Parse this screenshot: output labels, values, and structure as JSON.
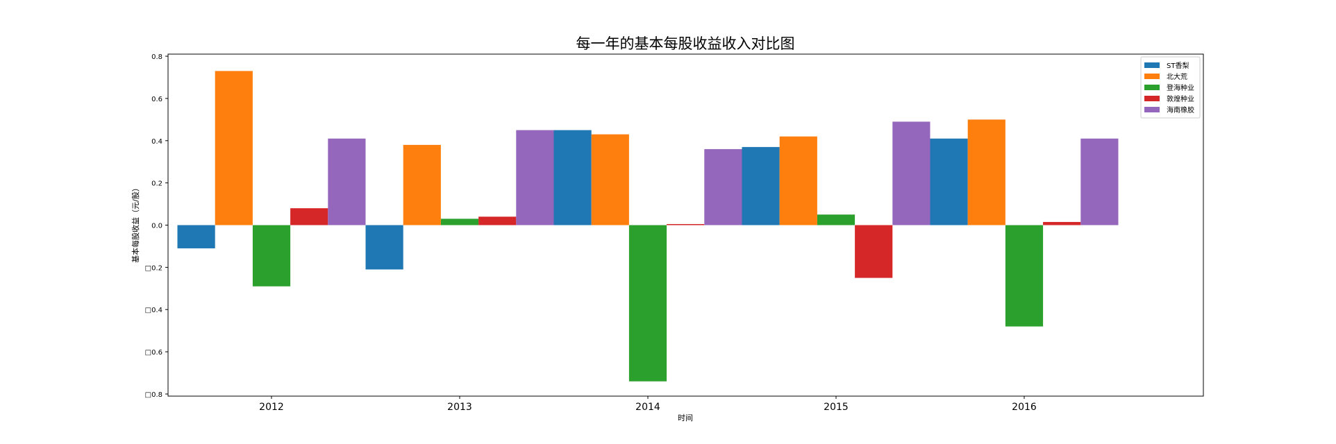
{
  "chart_data": {
    "type": "bar",
    "title": "每一年的基本每股收益收入对比图",
    "xlabel": "时间",
    "ylabel": "基本每股收益（元/股）",
    "categories": [
      "2012",
      "2013",
      "2014",
      "2015",
      "2016"
    ],
    "ylim": [
      -0.81,
      0.81
    ],
    "yticks": [
      0.8,
      0.6,
      0.4,
      0.2,
      0.0,
      -0.2,
      -0.4,
      -0.6,
      -0.8
    ],
    "ytick_labels": [
      "0.8",
      "0.6",
      "0.4",
      "0.2",
      "0.0",
      "□0.2",
      "□0.4",
      "□0.6",
      "□0.8"
    ],
    "grid": false,
    "legend_position": "top-right",
    "series": [
      {
        "name": "ST香梨",
        "color": "#1f77b4",
        "values": [
          -0.11,
          -0.21,
          0.45,
          0.37,
          0.41
        ]
      },
      {
        "name": "北大荒",
        "color": "#ff7f0e",
        "values": [
          0.73,
          0.38,
          0.43,
          0.42,
          0.5
        ]
      },
      {
        "name": "登海种业",
        "color": "#2ca02c",
        "values": [
          -0.29,
          0.03,
          -0.74,
          0.05,
          -0.48
        ]
      },
      {
        "name": "敦煌种业",
        "color": "#d62728",
        "values": [
          0.08,
          0.04,
          0.005,
          -0.25,
          0.015
        ]
      },
      {
        "name": "海南橡胶",
        "color": "#9467bd",
        "values": [
          0.41,
          0.45,
          0.36,
          0.49,
          0.41
        ]
      }
    ]
  }
}
